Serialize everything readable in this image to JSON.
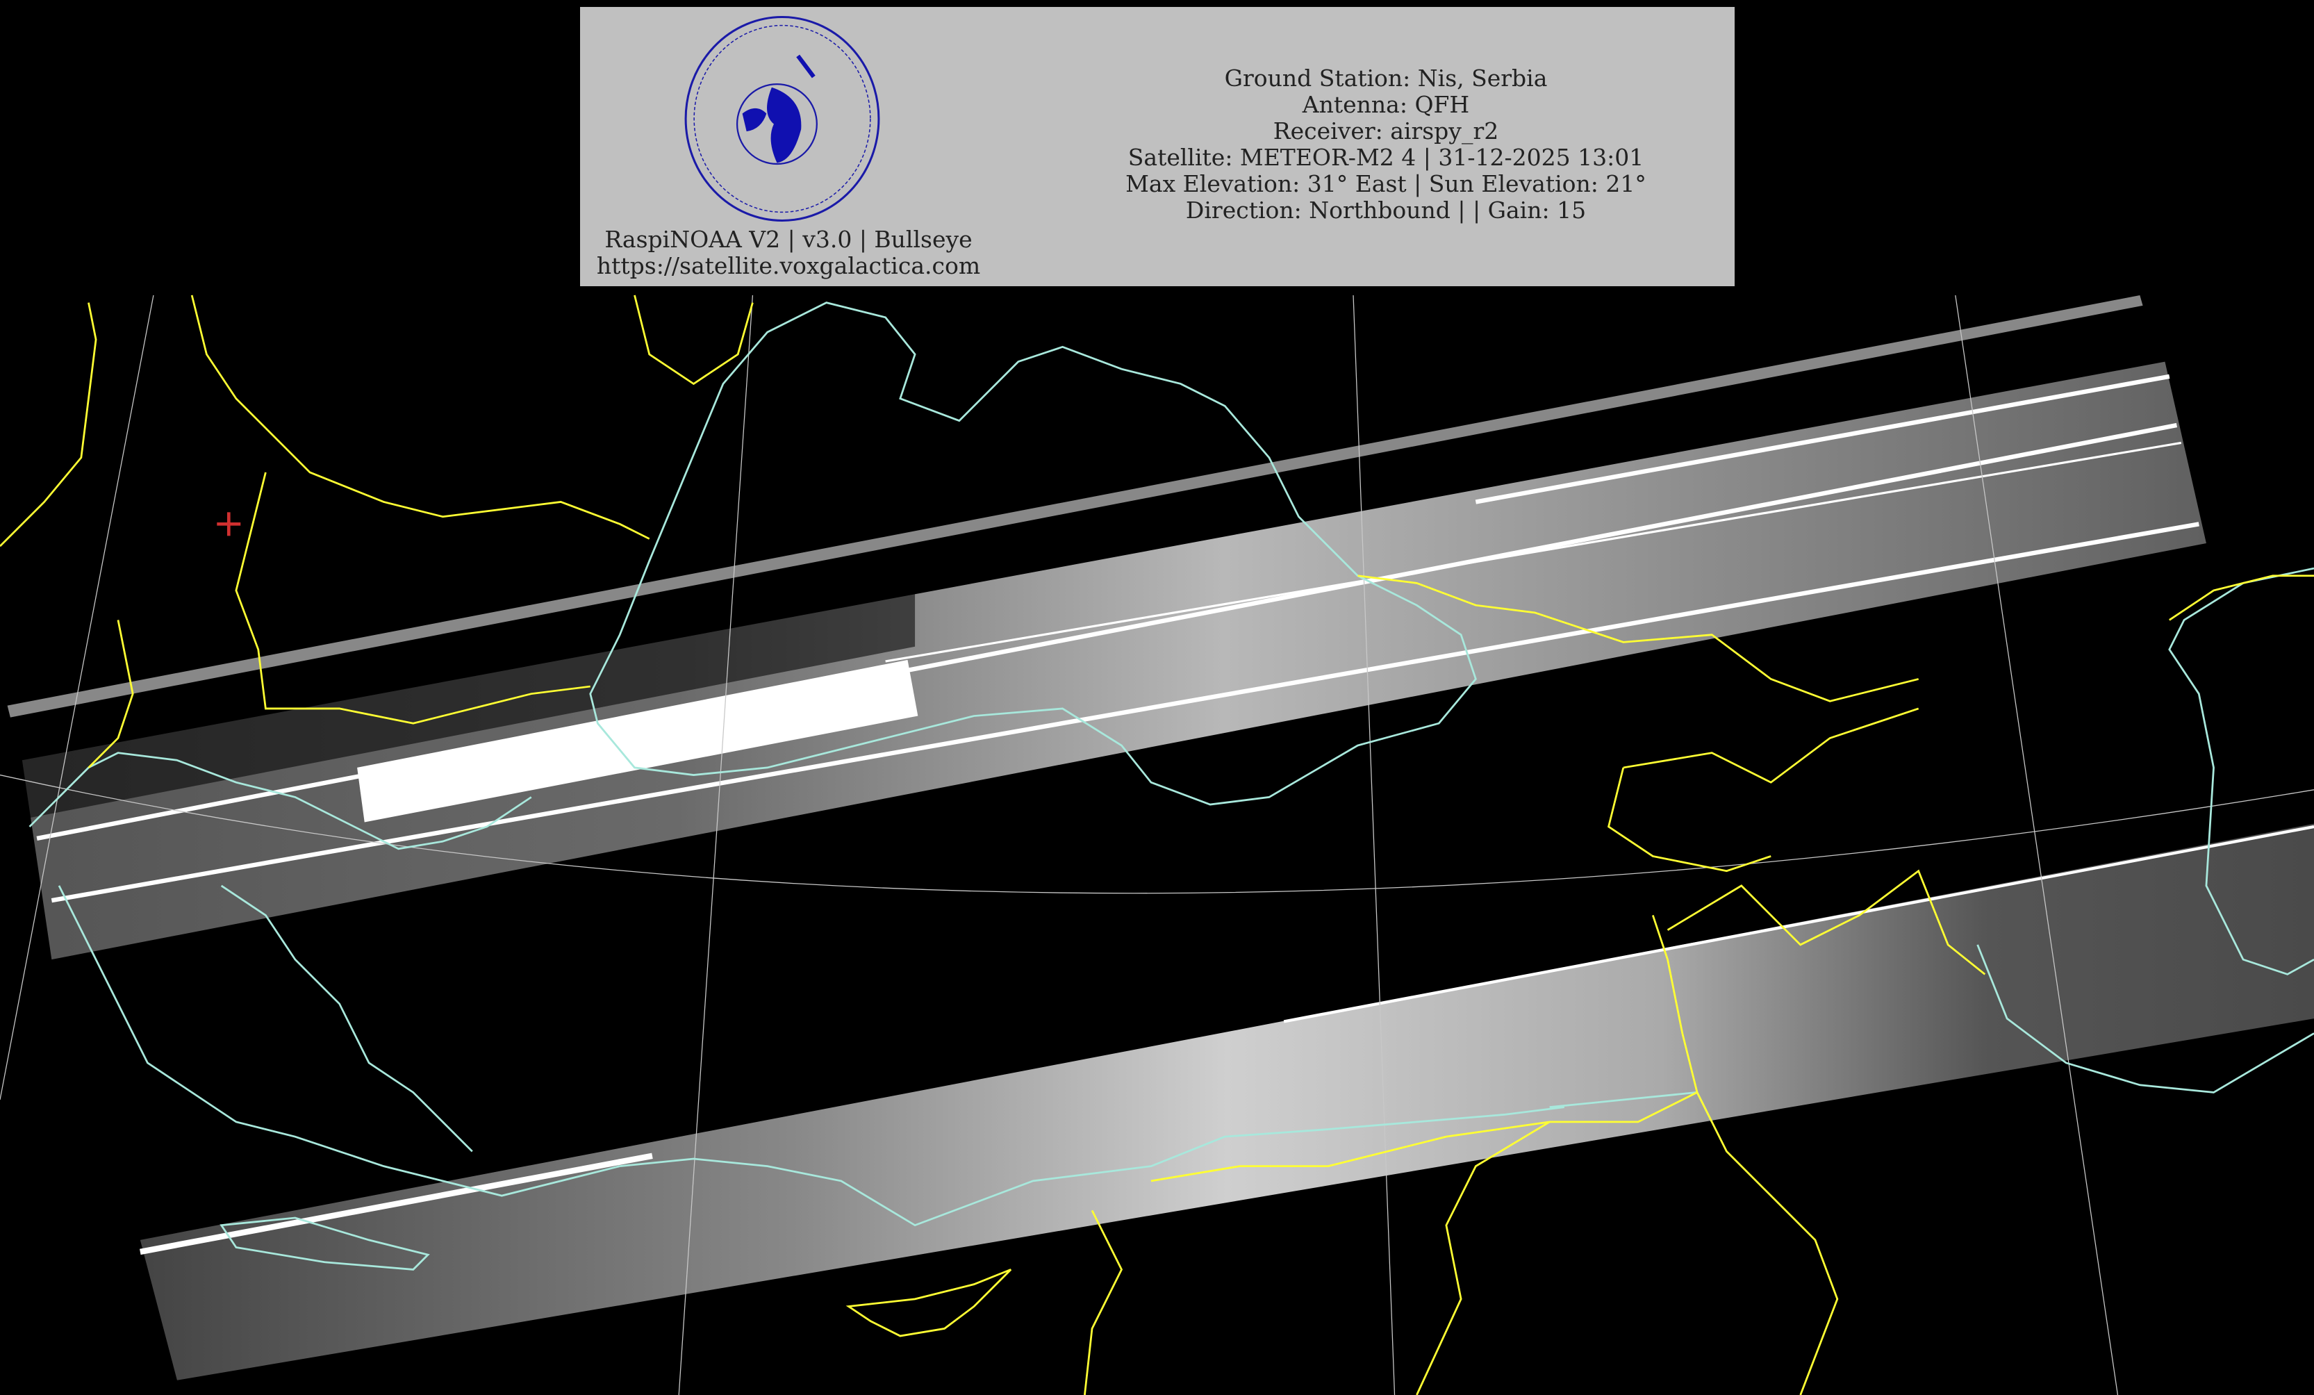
{
  "header": {
    "logo": {
      "top_text": "Mihajlo's Satellite Receiver",
      "middle_text": "SAPERE AVDE",
      "bottom_text": "voxgalactica.com"
    },
    "software": "RaspiNOAA V2 | v3.0 | Bullseye",
    "website": "https://satellite.voxgalactica.com",
    "info_lines": [
      "Ground Station: Nis, Serbia",
      "Antenna: QFH",
      "Receiver: airspy_r2",
      "Satellite: METEOR-M2 4 | 31-12-2025 13:01",
      "Max Elevation: 31° East | Sun Elevation: 21°",
      "Direction: Northbound | | Gain: 15"
    ]
  },
  "map": {
    "background": "#000000",
    "coastline_color": "#a8e8dc",
    "border_color": "#ffff33",
    "grid_color": "#c8c8c8",
    "ground_station_marker_color": "#d03030",
    "ground_station_marker": "plus-icon"
  }
}
